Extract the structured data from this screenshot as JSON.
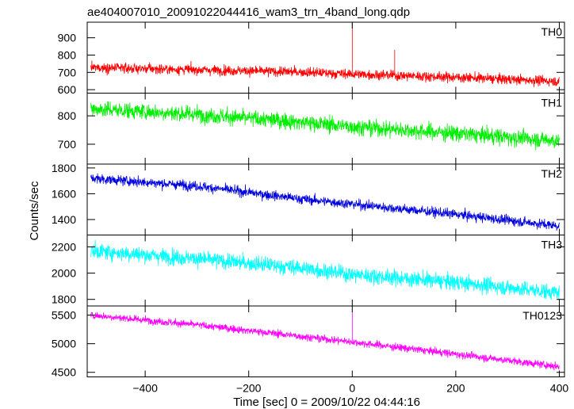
{
  "title": "ae404007010_20091022044416_wam3_trn_4band_long.qdp",
  "ylabel": "Counts/sec",
  "xlabel": "Time [sec] 0 = 2009/10/22 04:44:16",
  "chart_data": {
    "type": "line",
    "title": "ae404007010_20091022044416_wam3_trn_4band_long.qdp",
    "xlabel": "Time [sec] 0 = 2009/10/22 04:44:16",
    "ylabel": "Counts/sec",
    "xlim": [
      -512,
      410
    ],
    "x_ticks": [
      -400,
      -200,
      0,
      200,
      400
    ],
    "x_tick_labels": [
      "−400",
      "−200",
      "0",
      "200",
      "400"
    ],
    "grid": false,
    "panels": [
      {
        "name": "TH0",
        "color": "#ff0000",
        "ylim": [
          580,
          990
        ],
        "y_ticks": [
          600,
          700,
          800,
          900
        ],
        "y_tick_labels": [
          "600",
          "700",
          "800",
          "900"
        ],
        "trend": {
          "x": [
            -505,
            -300,
            -100,
            0,
            200,
            400
          ],
          "y": [
            728,
            715,
            702,
            690,
            672,
            648
          ]
        },
        "noise_sd": 24,
        "spikes": [
          {
            "x": 0,
            "y": 985
          },
          {
            "x": 82,
            "y": 830
          }
        ]
      },
      {
        "name": "TH1",
        "color": "#00ee00",
        "ylim": [
          630,
          880
        ],
        "y_ticks": [
          700,
          800
        ],
        "y_tick_labels": [
          "700",
          "800"
        ],
        "trend": {
          "x": [
            -505,
            -300,
            -100,
            0,
            200,
            400
          ],
          "y": [
            825,
            805,
            778,
            762,
            738,
            712
          ]
        },
        "noise_sd": 24,
        "spikes": []
      },
      {
        "name": "TH2",
        "color": "#0000dd",
        "ylim": [
          1280,
          1830
        ],
        "y_ticks": [
          1400,
          1600,
          1800
        ],
        "y_tick_labels": [
          "1400",
          "1600",
          "1800"
        ],
        "trend": {
          "x": [
            -505,
            -300,
            -100,
            0,
            200,
            400
          ],
          "y": [
            1720,
            1660,
            1560,
            1520,
            1440,
            1350
          ]
        },
        "noise_sd": 32,
        "spikes": []
      },
      {
        "name": "TH3",
        "color": "#00ffff",
        "ylim": [
          1750,
          2290
        ],
        "y_ticks": [
          1800,
          2000,
          2200
        ],
        "y_tick_labels": [
          "1800",
          "2000",
          "2200"
        ],
        "trend": {
          "x": [
            -505,
            -300,
            -100,
            0,
            200,
            400
          ],
          "y": [
            2170,
            2110,
            2040,
            1990,
            1930,
            1850
          ]
        },
        "noise_sd": 50,
        "spikes": []
      },
      {
        "name": "TH0123",
        "color": "#ff00ff",
        "ylim": [
          4420,
          5660
        ],
        "y_ticks": [
          4500,
          5000,
          5500
        ],
        "y_tick_labels": [
          "4500",
          "5000",
          "5500"
        ],
        "trend": {
          "x": [
            -505,
            -300,
            -100,
            0,
            200,
            400
          ],
          "y": [
            5500,
            5330,
            5130,
            5030,
            4820,
            4600
          ]
        },
        "noise_sd": 55,
        "spikes": [
          {
            "x": 0,
            "y": 5560
          }
        ]
      }
    ]
  }
}
